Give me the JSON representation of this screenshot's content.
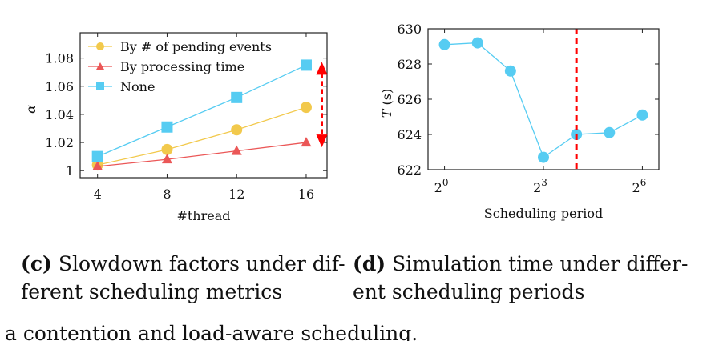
{
  "chart_data": [
    {
      "type": "line",
      "xlabel": "#thread",
      "ylabel": "α",
      "categories": [
        4,
        8,
        12,
        16
      ],
      "xticks": [
        "4",
        "8",
        "12",
        "16"
      ],
      "yticks": [
        "1",
        "1.02",
        "1.04",
        "1.06",
        "1.08"
      ],
      "xlim": [
        3,
        17.2
      ],
      "ylim": [
        0.995,
        1.098
      ],
      "series": [
        {
          "name": "By # of pending events",
          "values": [
            1.004,
            1.015,
            1.029,
            1.045
          ],
          "color": "#f2c94c",
          "marker": "circle"
        },
        {
          "name": "By processing time",
          "values": [
            1.003,
            1.008,
            1.014,
            1.02
          ],
          "color": "#eb5757",
          "marker": "triangle"
        },
        {
          "name": "None",
          "values": [
            1.01,
            1.031,
            1.052,
            1.075
          ],
          "color": "#56ccf2",
          "marker": "square"
        }
      ],
      "legend": "top-left",
      "annotation": {
        "type": "double-arrow",
        "x": 16.9,
        "from": 1.075,
        "to": 1.02,
        "color": "#ff0000"
      }
    },
    {
      "type": "line",
      "xlabel": "Scheduling period",
      "ylabel": "T (s)",
      "xscale": "log2",
      "x": [
        1,
        2,
        4,
        8,
        16,
        32,
        64
      ],
      "xtick_bases": [
        "2",
        "2",
        "2"
      ],
      "xtick_exps": [
        "0",
        "3",
        "6"
      ],
      "yticks": [
        "622",
        "624",
        "626",
        "628",
        "630"
      ],
      "xlim_log2": [
        -0.5,
        6.5
      ],
      "ylim": [
        622,
        630
      ],
      "series": [
        {
          "name": "T",
          "values": [
            629.1,
            629.2,
            627.6,
            622.7,
            624.0,
            624.1,
            625.1
          ],
          "color": "#56ccf2",
          "marker": "circle"
        }
      ],
      "vline": {
        "x_log2": 4.0,
        "color": "#ff0000",
        "style": "dashed"
      }
    }
  ],
  "captions": {
    "c": {
      "label": "(c)",
      "line1": "Slowdown factors under dif-",
      "line2": "ferent scheduling metrics"
    },
    "d": {
      "label": "(d)",
      "line1": "Simulation time under differ-",
      "line2": "ent scheduling periods"
    }
  },
  "body_text": "a contention and load-aware scheduling."
}
